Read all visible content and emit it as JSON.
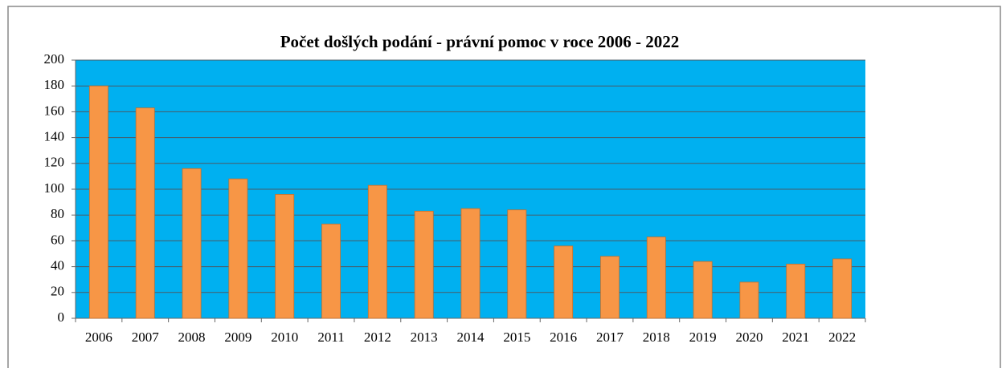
{
  "chart_data": {
    "type": "bar",
    "title": "Počet došlých podání - právní pomoc v roce 2006 - 2022",
    "categories": [
      "2006",
      "2007",
      "2008",
      "2009",
      "2010",
      "2011",
      "2012",
      "2013",
      "2014",
      "2015",
      "2016",
      "2017",
      "2018",
      "2019",
      "2020",
      "2021",
      "2022"
    ],
    "values": [
      180,
      163,
      116,
      108,
      96,
      73,
      103,
      83,
      85,
      84,
      56,
      48,
      63,
      44,
      28,
      42,
      46
    ],
    "color": "#f79646",
    "background": "#00b0f0",
    "ylim": [
      0,
      200
    ],
    "yticks": [
      0,
      20,
      40,
      60,
      80,
      100,
      120,
      140,
      160,
      180,
      200
    ],
    "grid": true
  }
}
